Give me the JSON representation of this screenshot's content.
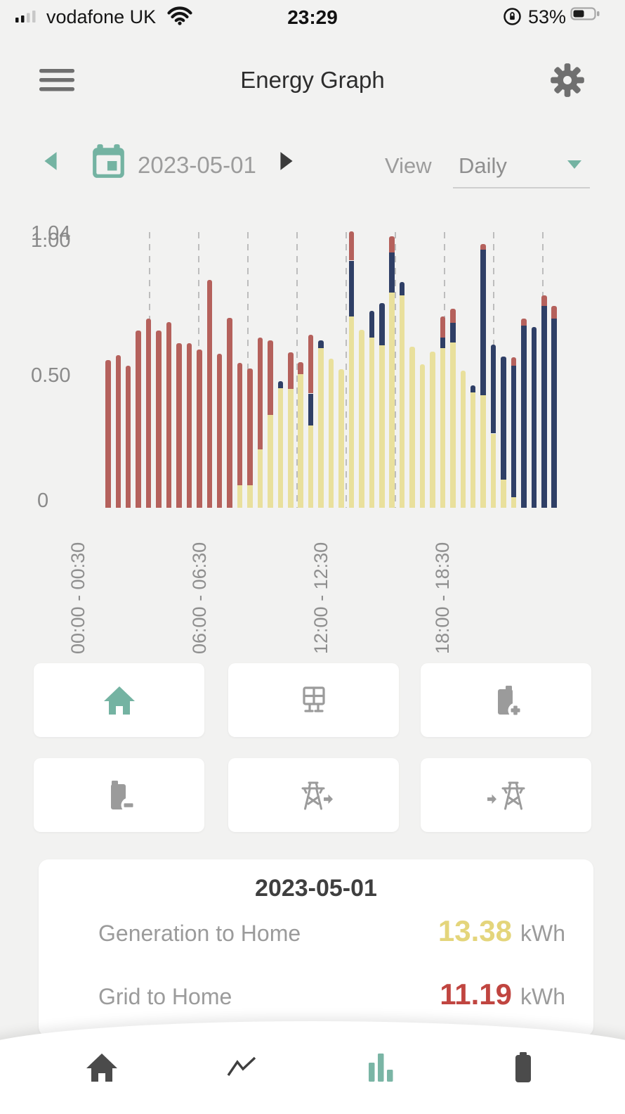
{
  "status_bar": {
    "carrier": "vodafone UK",
    "time": "23:29",
    "battery_percent": "53%"
  },
  "header": {
    "title": "Energy Graph"
  },
  "date_nav": {
    "date": "2023-05-01",
    "view_label": "View",
    "view_value": "Daily"
  },
  "chart_data": {
    "type": "bar",
    "stacked": true,
    "n_bars": 48,
    "interval": "30min",
    "ylim": [
      0,
      1.04
    ],
    "y_tick_labels": [
      "1.04",
      "1.00",
      "0.50",
      "0"
    ],
    "x_tick_labels": [
      "00:00 - 00:30",
      "06:00 - 06:30",
      "12:00 - 12:30",
      "18:00 - 18:30"
    ],
    "x_tick_indices": [
      0,
      12,
      24,
      36
    ],
    "grid": "dashed-vertical",
    "series": [
      {
        "name": "generation_to_home_yellow",
        "color": "#e9e09c",
        "values": [
          0,
          0,
          0,
          0,
          0,
          0,
          0,
          0,
          0,
          0,
          0,
          0,
          0,
          0,
          0,
          0,
          0.085,
          0.085,
          0.22,
          0.35,
          0.45,
          0.447,
          0.503,
          0.31,
          0.6,
          0.56,
          0.52,
          0.72,
          0.67,
          0.64,
          0.61,
          0.81,
          0.8,
          0.606,
          0.54,
          0.587,
          0.6,
          0.622,
          0.517,
          0.434,
          0.424,
          0.279,
          0.107,
          0.04,
          0,
          0,
          0,
          0
        ]
      },
      {
        "name": "navy_segment",
        "color": "#2f3f66",
        "values": [
          0,
          0,
          0,
          0,
          0,
          0,
          0,
          0,
          0,
          0,
          0,
          0,
          0,
          0,
          0,
          0,
          0,
          0,
          0,
          0,
          0.025,
          0,
          0,
          0.12,
          0.03,
          0,
          0,
          0.21,
          0,
          0.1,
          0.16,
          0.15,
          0.05,
          0,
          0,
          0,
          0.04,
          0.075,
          0,
          0.026,
          0.547,
          0.335,
          0.463,
          0.494,
          0.685,
          0.68,
          0.759,
          0.711
        ]
      },
      {
        "name": "grid_to_home_red",
        "color": "#b5615c",
        "values": [
          0,
          0,
          0,
          0.556,
          0.574,
          0.534,
          0.667,
          0.712,
          0.667,
          0.698,
          0.619,
          0.619,
          0.595,
          0.857,
          0.579,
          0.714,
          0.46,
          0.44,
          0.42,
          0.28,
          0,
          0.137,
          0.045,
          0.22,
          0,
          0,
          0,
          0.11,
          0,
          0,
          0,
          0.06,
          0,
          0,
          0,
          0,
          0.08,
          0.053,
          0,
          0,
          0.02,
          0,
          0,
          0.031,
          0.027,
          0,
          0.04,
          0.048
        ]
      }
    ]
  },
  "mode_buttons": [
    {
      "icon": "home",
      "active": true
    },
    {
      "icon": "solar-panel",
      "active": false
    },
    {
      "icon": "battery-charge",
      "active": false
    },
    {
      "icon": "battery-discharge",
      "active": false
    },
    {
      "icon": "grid-export",
      "active": false
    },
    {
      "icon": "grid-import",
      "active": false
    }
  ],
  "summary": {
    "date": "2023-05-01",
    "rows": [
      {
        "label": "Generation to Home",
        "value": "13.38",
        "unit": "kWh",
        "color": "#e4d57b"
      },
      {
        "label": "Grid to Home",
        "value": "11.19",
        "unit": "kWh",
        "color": "#c04540"
      }
    ]
  },
  "bottom_nav": [
    {
      "icon": "home",
      "active": false
    },
    {
      "icon": "trend",
      "active": false
    },
    {
      "icon": "bar-chart",
      "active": true
    },
    {
      "icon": "battery",
      "active": false
    }
  ],
  "colors": {
    "accent_teal": "#74b3a2",
    "bar_yellow": "#e9e09c",
    "bar_navy": "#2f3f66",
    "bar_red": "#b5615c",
    "value_yellow": "#e4d57b",
    "value_red": "#c04540"
  }
}
